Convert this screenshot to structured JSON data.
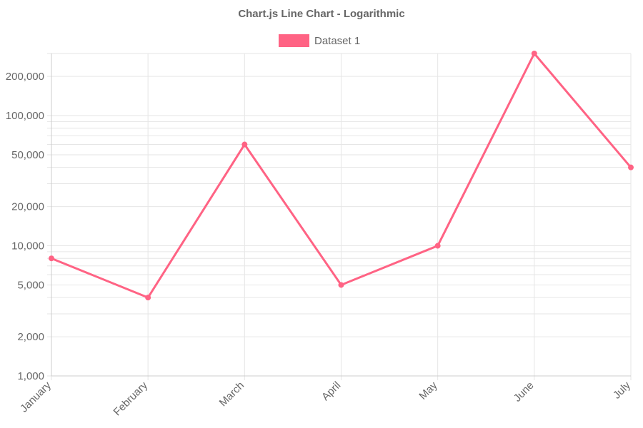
{
  "chart_data": {
    "type": "line",
    "title": "Chart.js Line Chart - Logarithmic",
    "categories": [
      "January",
      "February",
      "March",
      "April",
      "May",
      "June",
      "July"
    ],
    "series": [
      {
        "name": "Dataset 1",
        "color": "#ff6384",
        "values": [
          8000,
          4000,
          60000,
          5000,
          10000,
          300000,
          40000
        ]
      }
    ],
    "y_scale": "logarithmic",
    "ylim": [
      1000,
      300000
    ],
    "y_tick_values": [
      1000,
      2000,
      5000,
      10000,
      20000,
      50000,
      100000,
      200000
    ],
    "y_tick_labels": [
      "1,000",
      "2,000",
      "5,000",
      "10,000",
      "20,000",
      "50,000",
      "100,000",
      "200,000"
    ],
    "grid": true,
    "legend_position": "top",
    "gridline_color": "#e6e6e6"
  }
}
